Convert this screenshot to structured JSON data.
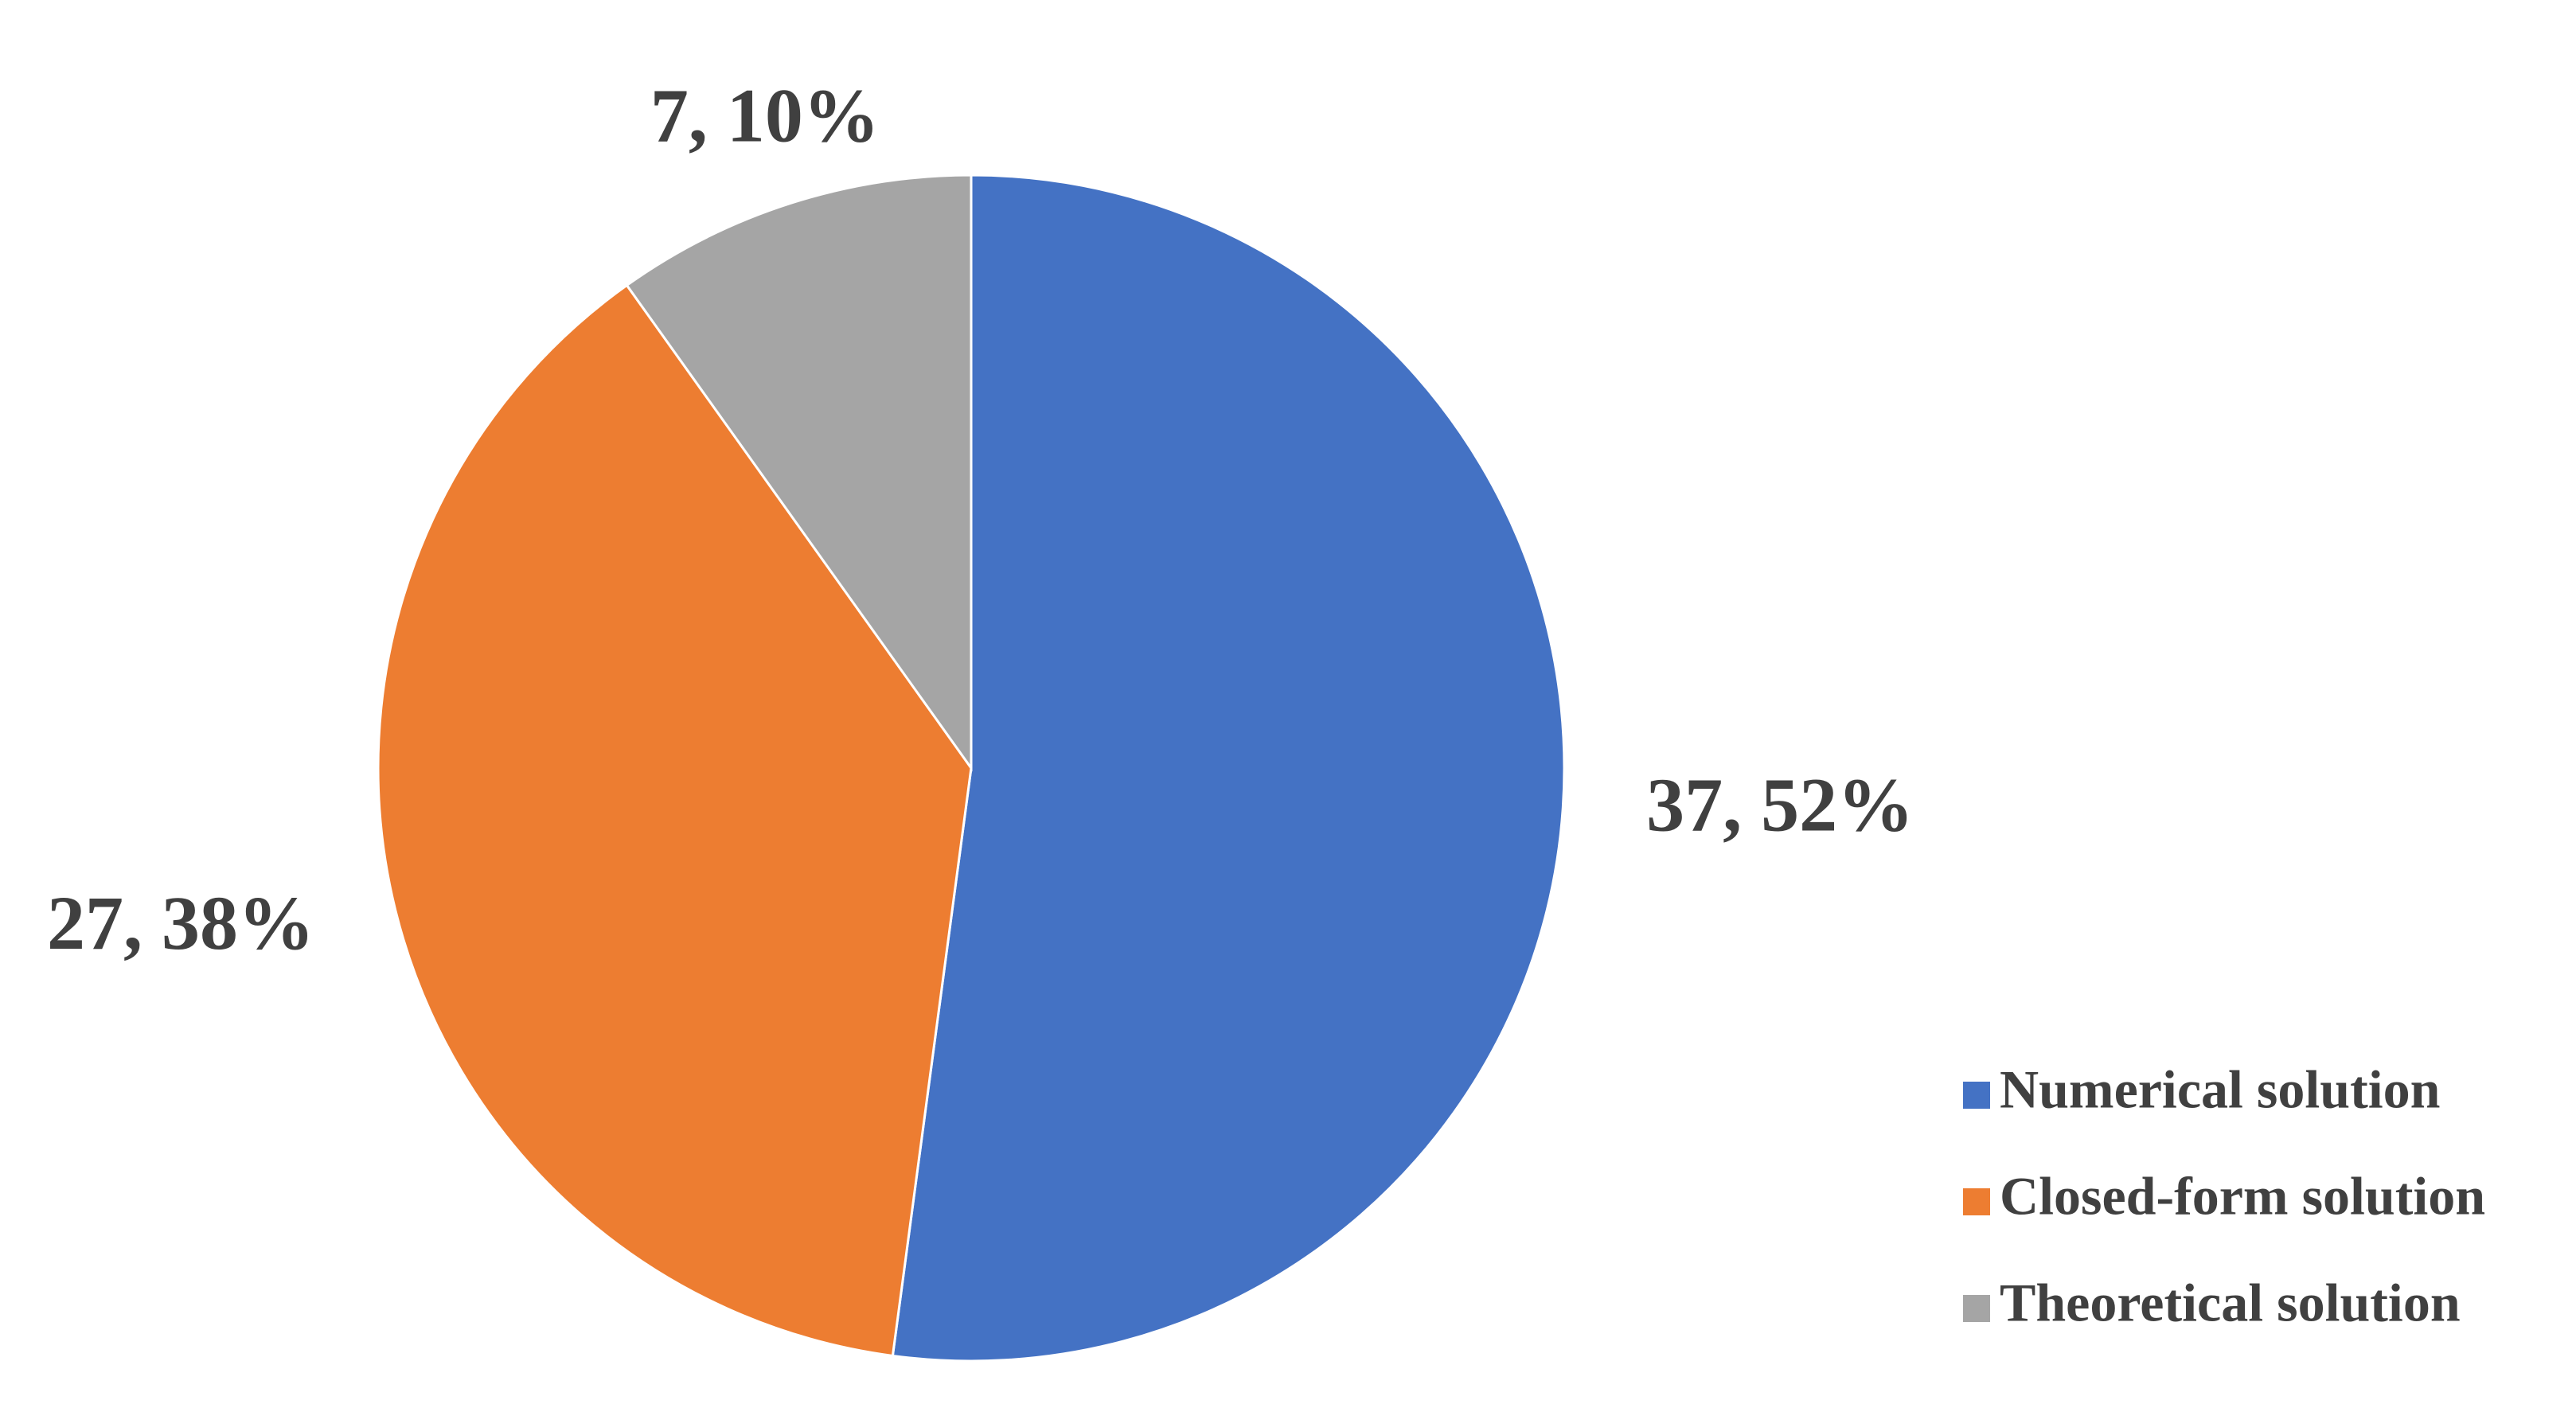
{
  "chart_data": {
    "type": "pie",
    "categories": [
      "Numerical solution",
      "Closed-form solution",
      "Theoretical solution"
    ],
    "values": [
      37,
      27,
      7
    ],
    "value_labels": [
      "37, 52%",
      "27, 38%",
      "7, 10%"
    ],
    "colors": [
      "#4472c4",
      "#ed7d31",
      "#a5a5a5"
    ]
  }
}
